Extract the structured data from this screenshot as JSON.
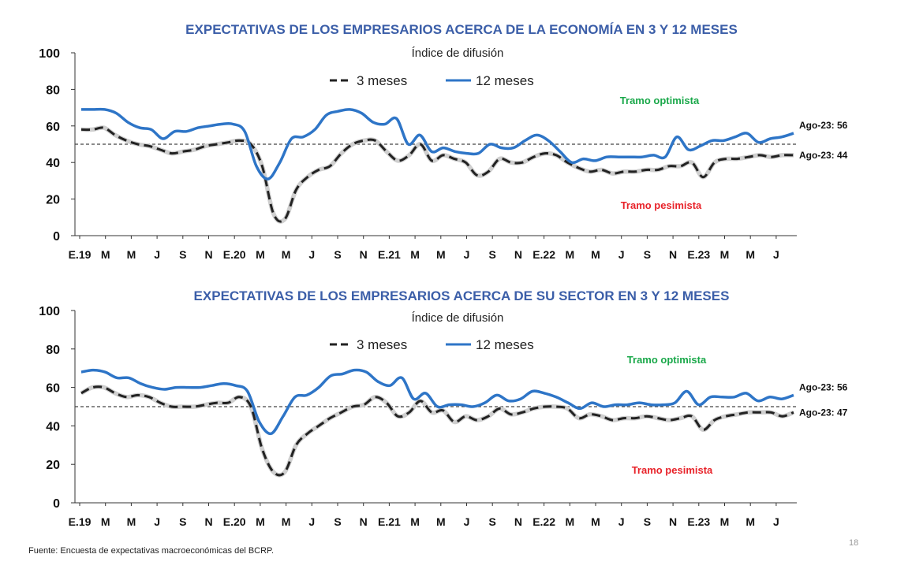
{
  "chart_data": [
    {
      "type": "line",
      "title": "EXPECTATIVAS DE LOS EMPRESARIOS ACERCA DE LA ECONOMÍA EN 3 Y 12 MESES",
      "subtitle": "Índice de difusión",
      "ylim": [
        0,
        100
      ],
      "yticks": [
        "0",
        "20",
        "40",
        "60",
        "80",
        "100"
      ],
      "x_tick_labels": [
        "E.19",
        "M",
        "M",
        "J",
        "S",
        "N",
        "E.20",
        "M",
        "M",
        "J",
        "S",
        "N",
        "E.21",
        "M",
        "M",
        "J",
        "S",
        "N",
        "E.22",
        "M",
        "M",
        "J",
        "S",
        "N",
        "E.23",
        "M",
        "M",
        "J"
      ],
      "reference_line": 50,
      "zone_optimist": "Tramo optimista",
      "zone_pessimist": "Tramo pesimista",
      "end_label_12": "Ago-23: 56",
      "end_label_3": "Ago-23: 44",
      "series": [
        {
          "name": "3 meses",
          "style": "dashed",
          "color": "#222222",
          "values": [
            58,
            58,
            59,
            55,
            52,
            50,
            49,
            47,
            45,
            46,
            47,
            49,
            50,
            51,
            52,
            50,
            38,
            12,
            9,
            25,
            32,
            36,
            38,
            45,
            50,
            52,
            52,
            46,
            41,
            44,
            50,
            41,
            44,
            42,
            40,
            33,
            35,
            42,
            40,
            40,
            43,
            45,
            44,
            40,
            37,
            35,
            36,
            34,
            35,
            35,
            36,
            36,
            38,
            38,
            40,
            32,
            40,
            42,
            42,
            43,
            44,
            43,
            44,
            44
          ]
        },
        {
          "name": "12 meses",
          "style": "solid",
          "color": "#2e75c7",
          "values": [
            69,
            69,
            69,
            67,
            62,
            59,
            58,
            53,
            57,
            57,
            59,
            60,
            61,
            61,
            57,
            38,
            31,
            40,
            53,
            54,
            58,
            66,
            68,
            69,
            67,
            62,
            61,
            64,
            50,
            55,
            46,
            48,
            46,
            45,
            45,
            50,
            48,
            48,
            52,
            55,
            52,
            46,
            40,
            42,
            41,
            43,
            43,
            43,
            43,
            44,
            43,
            54,
            47,
            49,
            52,
            52,
            54,
            56,
            51,
            53,
            54,
            56
          ]
        }
      ]
    },
    {
      "type": "line",
      "title": "EXPECTATIVAS DE LOS EMPRESARIOS ACERCA DE SU SECTOR EN 3 Y 12 MESES",
      "subtitle": "Índice de difusión",
      "ylim": [
        0,
        100
      ],
      "yticks": [
        "0",
        "20",
        "40",
        "60",
        "80",
        "100"
      ],
      "x_tick_labels": [
        "E.19",
        "M",
        "M",
        "J",
        "S",
        "N",
        "E.20",
        "M",
        "M",
        "J",
        "S",
        "N",
        "E.21",
        "M",
        "M",
        "J",
        "S",
        "N",
        "E.22",
        "M",
        "M",
        "J",
        "S",
        "N",
        "E.23",
        "M",
        "M",
        "J"
      ],
      "reference_line": 50,
      "zone_optimist": "Tramo optimista",
      "zone_pessimist": "Tramo pesimista",
      "end_label_12": "Ago-23: 56",
      "end_label_3": "Ago-23: 47",
      "series": [
        {
          "name": "3 meses",
          "style": "dashed",
          "color": "#222222",
          "values": [
            57,
            60,
            60,
            57,
            55,
            56,
            55,
            52,
            50,
            50,
            50,
            51,
            52,
            52,
            55,
            50,
            28,
            16,
            16,
            30,
            36,
            40,
            44,
            47,
            50,
            51,
            55,
            52,
            45,
            47,
            53,
            47,
            48,
            42,
            45,
            43,
            45,
            49,
            46,
            47,
            49,
            50,
            50,
            49,
            44,
            46,
            45,
            43,
            44,
            44,
            45,
            44,
            43,
            44,
            45,
            38,
            43,
            45,
            46,
            47,
            47,
            47,
            45,
            47
          ]
        },
        {
          "name": "12 meses",
          "style": "solid",
          "color": "#2e75c7",
          "values": [
            68,
            69,
            68,
            65,
            65,
            62,
            60,
            59,
            60,
            60,
            60,
            61,
            62,
            61,
            58,
            42,
            36,
            45,
            55,
            56,
            60,
            66,
            67,
            69,
            68,
            63,
            61,
            65,
            54,
            57,
            50,
            51,
            51,
            50,
            52,
            56,
            53,
            54,
            58,
            57,
            55,
            52,
            49,
            52,
            50,
            51,
            51,
            52,
            51,
            51,
            52,
            58,
            51,
            55,
            55,
            55,
            57,
            53,
            55,
            54,
            56
          ]
        }
      ]
    }
  ],
  "legend": {
    "label_3": "3 meses",
    "label_12": "12 meses"
  },
  "footer": "Fuente: Encuesta de expectativas macroeconómicas del BCRP.",
  "page_number": "18"
}
